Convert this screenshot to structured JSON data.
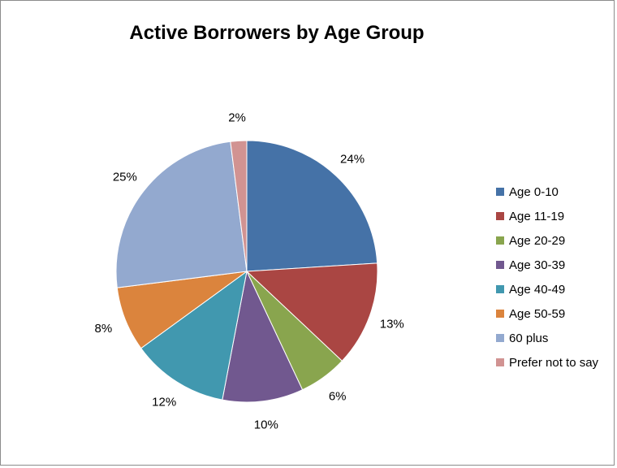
{
  "chart_data": {
    "type": "pie",
    "title": "Active Borrowers by Age Group",
    "slices": [
      {
        "label": "Age 0-10",
        "value": 24,
        "display": "24%",
        "color": "#4572a7"
      },
      {
        "label": "Age 11-19",
        "value": 13,
        "display": "13%",
        "color": "#aa4643"
      },
      {
        "label": "Age 20-29",
        "value": 6,
        "display": "6%",
        "color": "#89a54e"
      },
      {
        "label": "Age 30-39",
        "value": 10,
        "display": "10%",
        "color": "#71588f"
      },
      {
        "label": "Age 40-49",
        "value": 12,
        "display": "12%",
        "color": "#4198af"
      },
      {
        "label": "Age 50-59",
        "value": 8,
        "display": "8%",
        "color": "#db843d"
      },
      {
        "label": "60 plus",
        "value": 25,
        "display": "25%",
        "color": "#93a9cf"
      },
      {
        "label": "Prefer not to say",
        "value": 2,
        "display": "2%",
        "color": "#d19392"
      }
    ],
    "legend_position": "right"
  }
}
